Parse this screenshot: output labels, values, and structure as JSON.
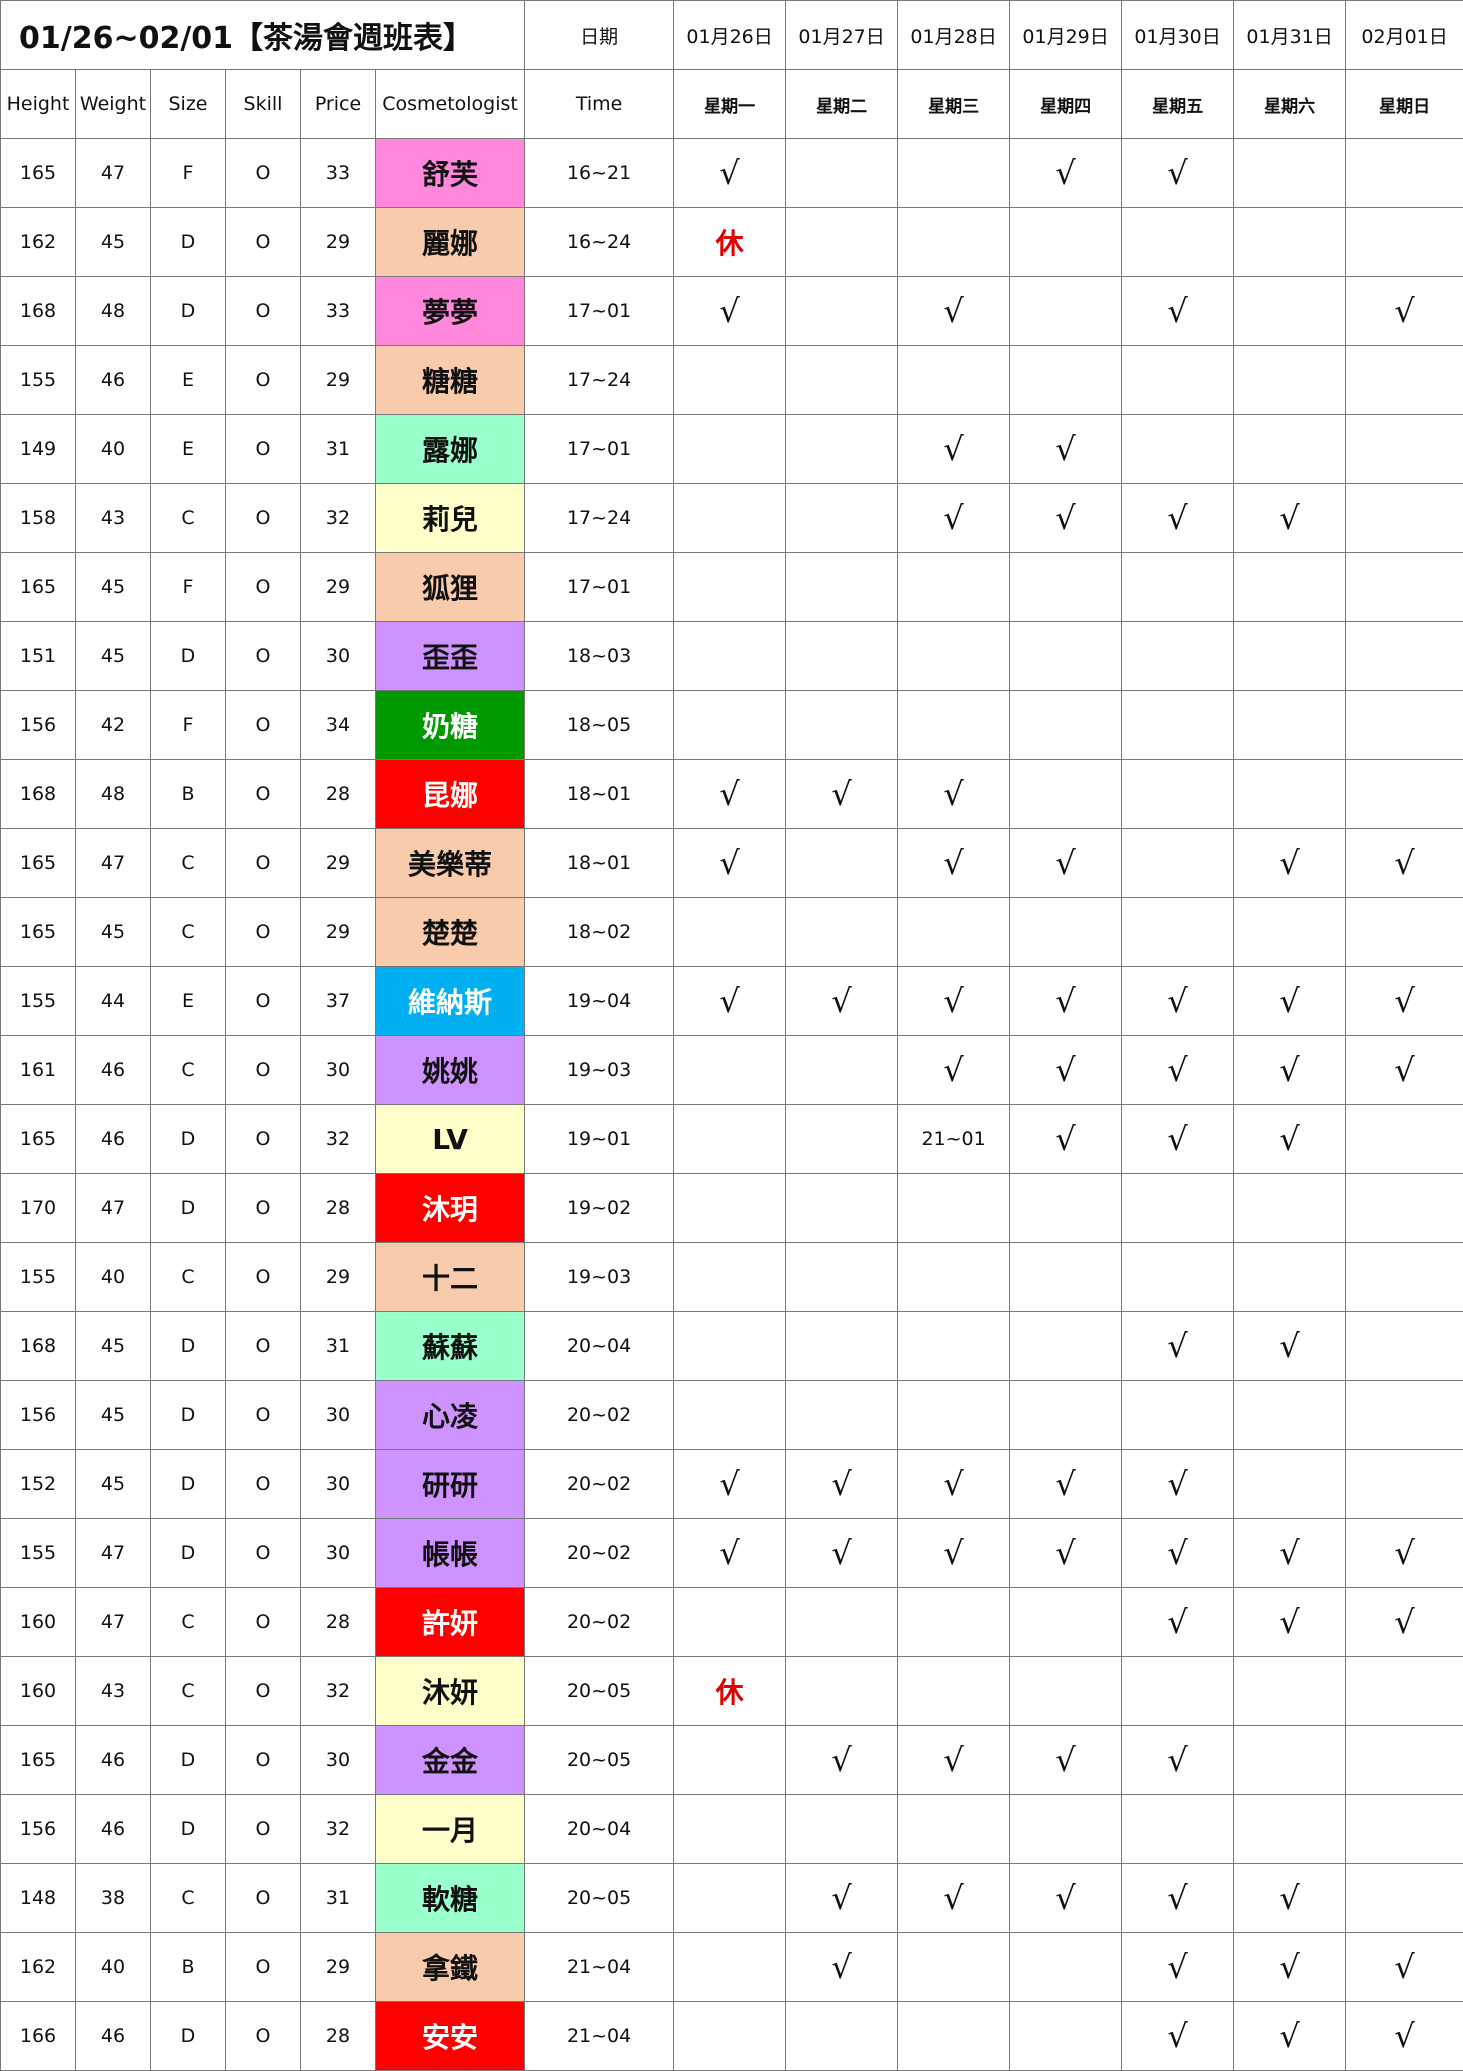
{
  "title": "01/26~02/01【茶湯會週班表】",
  "date_label": "日期",
  "dates": [
    "01月26日",
    "01月27日",
    "01月28日",
    "01月29日",
    "01月30日",
    "01月31日",
    "02月01日"
  ],
  "columns": [
    "Height",
    "Weight",
    "Size",
    "Skill",
    "Price",
    "Cosmetologist",
    "Time"
  ],
  "weekdays": [
    "星期一",
    "星期二",
    "星期三",
    "星期四",
    "星期五",
    "星期六",
    "星期日"
  ],
  "colors": {
    "pink": "#ff88dd",
    "peach": "#f8cbad",
    "mint": "#99ffcc",
    "yellow": "#ffffcc",
    "lavender": "#cf93ff",
    "green": "#009900",
    "red": "#ff0000",
    "blue": "#00b0f0",
    "rest": "#e00000"
  },
  "rows": [
    {
      "height": "165",
      "weight": "47",
      "size": "F",
      "skill": "O",
      "price": "33",
      "name": "舒芙",
      "bg": "#ff88dd",
      "fg": "#111111",
      "time": "16~21",
      "days": [
        "√",
        "",
        "",
        "√",
        "√",
        "",
        ""
      ]
    },
    {
      "height": "162",
      "weight": "45",
      "size": "D",
      "skill": "O",
      "price": "29",
      "name": "麗娜",
      "bg": "#f8cbad",
      "fg": "#111111",
      "time": "16~24",
      "days": [
        "休",
        "",
        "",
        "",
        "",
        "",
        ""
      ]
    },
    {
      "height": "168",
      "weight": "48",
      "size": "D",
      "skill": "O",
      "price": "33",
      "name": "夢夢",
      "bg": "#ff88dd",
      "fg": "#111111",
      "time": "17~01",
      "days": [
        "√",
        "",
        "√",
        "",
        "√",
        "",
        "√"
      ]
    },
    {
      "height": "155",
      "weight": "46",
      "size": "E",
      "skill": "O",
      "price": "29",
      "name": "糖糖",
      "bg": "#f8cbad",
      "fg": "#111111",
      "time": "17~24",
      "days": [
        "",
        "",
        "",
        "",
        "",
        "",
        ""
      ]
    },
    {
      "height": "149",
      "weight": "40",
      "size": "E",
      "skill": "O",
      "price": "31",
      "name": "露娜",
      "bg": "#99ffcc",
      "fg": "#111111",
      "time": "17~01",
      "days": [
        "",
        "",
        "√",
        "√",
        "",
        "",
        ""
      ]
    },
    {
      "height": "158",
      "weight": "43",
      "size": "C",
      "skill": "O",
      "price": "32",
      "name": "莉兒",
      "bg": "#ffffcc",
      "fg": "#111111",
      "time": "17~24",
      "days": [
        "",
        "",
        "√",
        "√",
        "√",
        "√",
        ""
      ]
    },
    {
      "height": "165",
      "weight": "45",
      "size": "F",
      "skill": "O",
      "price": "29",
      "name": "狐狸",
      "bg": "#f8cbad",
      "fg": "#111111",
      "time": "17~01",
      "days": [
        "",
        "",
        "",
        "",
        "",
        "",
        ""
      ]
    },
    {
      "height": "151",
      "weight": "45",
      "size": "D",
      "skill": "O",
      "price": "30",
      "name": "歪歪",
      "bg": "#cf93ff",
      "fg": "#111111",
      "time": "18~03",
      "days": [
        "",
        "",
        "",
        "",
        "",
        "",
        ""
      ]
    },
    {
      "height": "156",
      "weight": "42",
      "size": "F",
      "skill": "O",
      "price": "34",
      "name": "奶糖",
      "bg": "#009900",
      "fg": "#ffffff",
      "time": "18~05",
      "days": [
        "",
        "",
        "",
        "",
        "",
        "",
        ""
      ]
    },
    {
      "height": "168",
      "weight": "48",
      "size": "B",
      "skill": "O",
      "price": "28",
      "name": "昆娜",
      "bg": "#ff0000",
      "fg": "#ffffff",
      "time": "18~01",
      "days": [
        "√",
        "√",
        "√",
        "",
        "",
        "",
        ""
      ]
    },
    {
      "height": "165",
      "weight": "47",
      "size": "C",
      "skill": "O",
      "price": "29",
      "name": "美樂蒂",
      "bg": "#f8cbad",
      "fg": "#111111",
      "time": "18~01",
      "days": [
        "√",
        "",
        "√",
        "√",
        "",
        "√",
        "√"
      ]
    },
    {
      "height": "165",
      "weight": "45",
      "size": "C",
      "skill": "O",
      "price": "29",
      "name": "楚楚",
      "bg": "#f8cbad",
      "fg": "#111111",
      "time": "18~02",
      "days": [
        "",
        "",
        "",
        "",
        "",
        "",
        ""
      ]
    },
    {
      "height": "155",
      "weight": "44",
      "size": "E",
      "skill": "O",
      "price": "37",
      "name": "維納斯",
      "bg": "#00b0f0",
      "fg": "#ffffff",
      "time": "19~04",
      "days": [
        "√",
        "√",
        "√",
        "√",
        "√",
        "√",
        "√"
      ]
    },
    {
      "height": "161",
      "weight": "46",
      "size": "C",
      "skill": "O",
      "price": "30",
      "name": "姚姚",
      "bg": "#cf93ff",
      "fg": "#111111",
      "time": "19~03",
      "days": [
        "",
        "",
        "√",
        "√",
        "√",
        "√",
        "√"
      ]
    },
    {
      "height": "165",
      "weight": "46",
      "size": "D",
      "skill": "O",
      "price": "32",
      "name": "LV",
      "bg": "#ffffcc",
      "fg": "#111111",
      "time": "19~01",
      "days": [
        "",
        "",
        "21~01",
        "√",
        "√",
        "√",
        ""
      ]
    },
    {
      "height": "170",
      "weight": "47",
      "size": "D",
      "skill": "O",
      "price": "28",
      "name": "沐玥",
      "bg": "#ff0000",
      "fg": "#ffffff",
      "time": "19~02",
      "days": [
        "",
        "",
        "",
        "",
        "",
        "",
        ""
      ]
    },
    {
      "height": "155",
      "weight": "40",
      "size": "C",
      "skill": "O",
      "price": "29",
      "name": "十二",
      "bg": "#f8cbad",
      "fg": "#111111",
      "time": "19~03",
      "days": [
        "",
        "",
        "",
        "",
        "",
        "",
        ""
      ]
    },
    {
      "height": "168",
      "weight": "45",
      "size": "D",
      "skill": "O",
      "price": "31",
      "name": "蘇蘇",
      "bg": "#99ffcc",
      "fg": "#111111",
      "time": "20~04",
      "days": [
        "",
        "",
        "",
        "",
        "√",
        "√",
        ""
      ]
    },
    {
      "height": "156",
      "weight": "45",
      "size": "D",
      "skill": "O",
      "price": "30",
      "name": "心凌",
      "bg": "#cf93ff",
      "fg": "#111111",
      "time": "20~02",
      "days": [
        "",
        "",
        "",
        "",
        "",
        "",
        ""
      ]
    },
    {
      "height": "152",
      "weight": "45",
      "size": "D",
      "skill": "O",
      "price": "30",
      "name": "研研",
      "bg": "#cf93ff",
      "fg": "#111111",
      "time": "20~02",
      "days": [
        "√",
        "√",
        "√",
        "√",
        "√",
        "",
        ""
      ]
    },
    {
      "height": "155",
      "weight": "47",
      "size": "D",
      "skill": "O",
      "price": "30",
      "name": "帳帳",
      "bg": "#cf93ff",
      "fg": "#111111",
      "time": "20~02",
      "days": [
        "√",
        "√",
        "√",
        "√",
        "√",
        "√",
        "√"
      ]
    },
    {
      "height": "160",
      "weight": "47",
      "size": "C",
      "skill": "O",
      "price": "28",
      "name": "許妍",
      "bg": "#ff0000",
      "fg": "#ffffff",
      "time": "20~02",
      "days": [
        "",
        "",
        "",
        "",
        "√",
        "√",
        "√"
      ]
    },
    {
      "height": "160",
      "weight": "43",
      "size": "C",
      "skill": "O",
      "price": "32",
      "name": "沐妍",
      "bg": "#ffffcc",
      "fg": "#111111",
      "time": "20~05",
      "days": [
        "休",
        "",
        "",
        "",
        "",
        "",
        ""
      ]
    },
    {
      "height": "165",
      "weight": "46",
      "size": "D",
      "skill": "O",
      "price": "30",
      "name": "金金",
      "bg": "#cf93ff",
      "fg": "#111111",
      "time": "20~05",
      "days": [
        "",
        "√",
        "√",
        "√",
        "√",
        "",
        ""
      ]
    },
    {
      "height": "156",
      "weight": "46",
      "size": "D",
      "skill": "O",
      "price": "32",
      "name": "一月",
      "bg": "#ffffcc",
      "fg": "#111111",
      "time": "20~04",
      "days": [
        "",
        "",
        "",
        "",
        "",
        "",
        ""
      ]
    },
    {
      "height": "148",
      "weight": "38",
      "size": "C",
      "skill": "O",
      "price": "31",
      "name": "軟糖",
      "bg": "#99ffcc",
      "fg": "#111111",
      "time": "20~05",
      "days": [
        "",
        "√",
        "√",
        "√",
        "√",
        "√",
        ""
      ]
    },
    {
      "height": "162",
      "weight": "40",
      "size": "B",
      "skill": "O",
      "price": "29",
      "name": "拿鐵",
      "bg": "#f8cbad",
      "fg": "#111111",
      "time": "21~04",
      "days": [
        "",
        "√",
        "",
        "",
        "√",
        "√",
        "√"
      ]
    },
    {
      "height": "166",
      "weight": "46",
      "size": "D",
      "skill": "O",
      "price": "28",
      "name": "安安",
      "bg": "#ff0000",
      "fg": "#ffffff",
      "time": "21~04",
      "days": [
        "",
        "",
        "",
        "",
        "√",
        "√",
        "√"
      ]
    }
  ]
}
